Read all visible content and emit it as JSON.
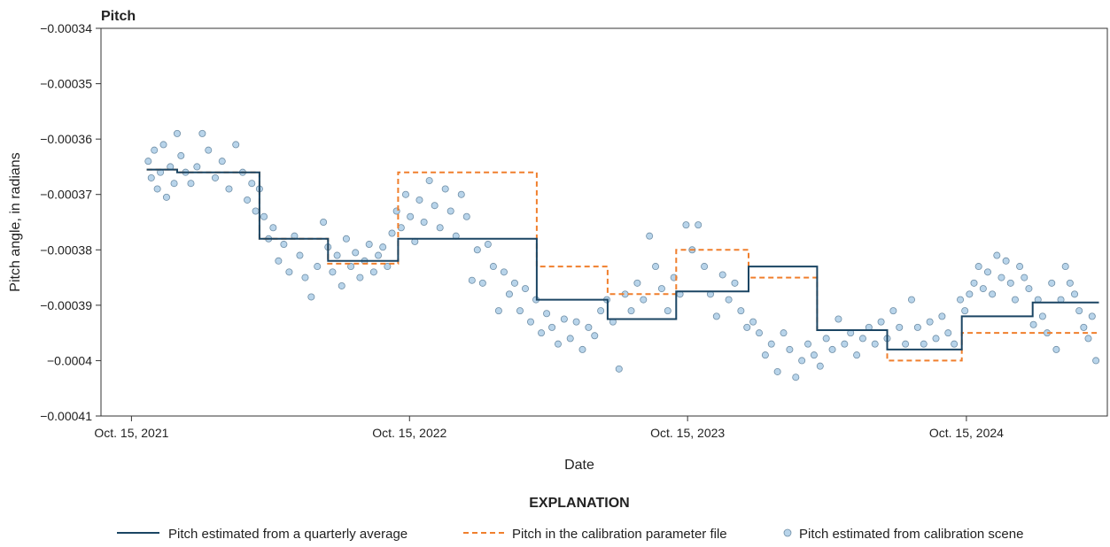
{
  "chart_data": {
    "type": "line",
    "title": "Pitch",
    "xlabel": "Date",
    "ylabel": "Pitch angle, in radians",
    "ylim": [
      -0.00041,
      -0.00034
    ],
    "yticks": [
      -0.00034,
      -0.00035,
      -0.00036,
      -0.00037,
      -0.00038,
      -0.00039,
      -0.0004,
      -0.00041
    ],
    "ytick_labels": [
      "−0.00034",
      "−0.00035",
      "−0.00036",
      "−0.00037",
      "−0.00038",
      "−0.00039",
      "−0.0004",
      "−0.00041"
    ],
    "xlim_days": [
      -40,
      1281
    ],
    "xticks": [
      {
        "day": 0,
        "label": "Oct. 15, 2021"
      },
      {
        "day": 365,
        "label": "Oct. 15, 2022"
      },
      {
        "day": 730,
        "label": "Oct. 15, 2023"
      },
      {
        "day": 1096,
        "label": "Oct. 15, 2024"
      }
    ],
    "x_unit": "days since Oct. 15, 2021",
    "grid": false,
    "explanation_title": "EXPLANATION",
    "legend_position": "bottom",
    "series": [
      {
        "name": "Pitch estimated from a quarterly average",
        "style": "solid-step",
        "color": "#1b4563",
        "x": [
          20,
          60,
          60,
          168,
          168,
          258,
          258,
          350,
          350,
          442,
          442,
          532,
          532,
          625,
          625,
          715,
          715,
          810,
          810,
          900,
          900,
          992,
          992,
          1090,
          1090,
          1183,
          1183,
          1270
        ],
        "y": [
          -0.0003655,
          -0.0003655,
          -0.000366,
          -0.000366,
          -0.000378,
          -0.000378,
          -0.000382,
          -0.000382,
          -0.000378,
          -0.000378,
          -0.000378,
          -0.000378,
          -0.000389,
          -0.000389,
          -0.0003925,
          -0.0003925,
          -0.0003875,
          -0.0003875,
          -0.000383,
          -0.000383,
          -0.0003945,
          -0.0003945,
          -0.000398,
          -0.000398,
          -0.000392,
          -0.000392,
          -0.0003895,
          -0.0003895
        ]
      },
      {
        "name": "Pitch in the calibration parameter file",
        "style": "dashed-step",
        "color": "#f07f2d",
        "x": [
          20,
          60,
          60,
          168,
          168,
          258,
          258,
          350,
          350,
          532,
          532,
          625,
          625,
          715,
          715,
          810,
          810,
          900,
          900,
          992,
          992,
          1090,
          1090,
          1270
        ],
        "y": [
          -0.0003655,
          -0.0003655,
          -0.000366,
          -0.000366,
          -0.000378,
          -0.000378,
          -0.0003825,
          -0.0003825,
          -0.000366,
          -0.000366,
          -0.000383,
          -0.000383,
          -0.000388,
          -0.000388,
          -0.00038,
          -0.00038,
          -0.000385,
          -0.000385,
          -0.0003945,
          -0.0003945,
          -0.0004,
          -0.0004,
          -0.000395,
          -0.000395
        ]
      },
      {
        "name": "Pitch estimated from calibration scene",
        "style": "scatter",
        "color": "#b8d4ea",
        "x": [
          22,
          26,
          30,
          34,
          38,
          42,
          46,
          51,
          56,
          60,
          65,
          71,
          78,
          86,
          93,
          101,
          110,
          119,
          128,
          137,
          146,
          152,
          158,
          163,
          168,
          174,
          180,
          186,
          193,
          200,
          207,
          214,
          221,
          228,
          236,
          244,
          252,
          258,
          264,
          270,
          276,
          282,
          288,
          294,
          300,
          306,
          312,
          318,
          324,
          330,
          336,
          342,
          348,
          354,
          360,
          366,
          372,
          378,
          384,
          391,
          398,
          405,
          412,
          419,
          426,
          433,
          440,
          447,
          454,
          461,
          468,
          475,
          482,
          489,
          496,
          503,
          510,
          517,
          524,
          531,
          538,
          545,
          552,
          560,
          568,
          576,
          584,
          592,
          600,
          608,
          616,
          624,
          632,
          640,
          648,
          656,
          664,
          672,
          680,
          688,
          696,
          704,
          712,
          720,
          728,
          736,
          744,
          752,
          760,
          768,
          776,
          784,
          792,
          800,
          808,
          816,
          824,
          832,
          840,
          848,
          856,
          864,
          872,
          880,
          888,
          896,
          904,
          912,
          920,
          928,
          936,
          944,
          952,
          960,
          968,
          976,
          984,
          992,
          1000,
          1008,
          1016,
          1024,
          1032,
          1040,
          1048,
          1056,
          1064,
          1072,
          1080,
          1088,
          1094,
          1100,
          1106,
          1112,
          1118,
          1124,
          1130,
          1136,
          1142,
          1148,
          1154,
          1160,
          1166,
          1172,
          1178,
          1184,
          1190,
          1196,
          1202,
          1208,
          1214,
          1220,
          1226,
          1232,
          1238,
          1244,
          1250,
          1256,
          1261,
          1266
        ],
        "y": [
          -0.000364,
          -0.000367,
          -0.000362,
          -0.000369,
          -0.000366,
          -0.000361,
          -0.0003705,
          -0.000365,
          -0.000368,
          -0.000359,
          -0.000363,
          -0.000366,
          -0.000368,
          -0.000365,
          -0.000359,
          -0.000362,
          -0.000367,
          -0.000364,
          -0.000369,
          -0.000361,
          -0.000366,
          -0.000371,
          -0.000368,
          -0.000373,
          -0.000369,
          -0.000374,
          -0.000378,
          -0.000376,
          -0.000382,
          -0.000379,
          -0.000384,
          -0.0003775,
          -0.000381,
          -0.000385,
          -0.0003885,
          -0.000383,
          -0.000375,
          -0.0003795,
          -0.000384,
          -0.000381,
          -0.0003865,
          -0.000378,
          -0.000383,
          -0.0003805,
          -0.000385,
          -0.000382,
          -0.000379,
          -0.000384,
          -0.000381,
          -0.0003795,
          -0.000383,
          -0.000377,
          -0.000373,
          -0.000376,
          -0.00037,
          -0.000374,
          -0.0003785,
          -0.000371,
          -0.000375,
          -0.0003675,
          -0.000372,
          -0.000376,
          -0.000369,
          -0.000373,
          -0.0003775,
          -0.00037,
          -0.000374,
          -0.0003855,
          -0.00038,
          -0.000386,
          -0.000379,
          -0.000383,
          -0.000391,
          -0.000384,
          -0.000388,
          -0.000386,
          -0.000391,
          -0.000387,
          -0.000393,
          -0.000389,
          -0.000395,
          -0.0003915,
          -0.000394,
          -0.000397,
          -0.0003925,
          -0.000396,
          -0.000393,
          -0.000398,
          -0.000394,
          -0.0003955,
          -0.000391,
          -0.000389,
          -0.000393,
          -0.0004015,
          -0.000388,
          -0.000391,
          -0.000386,
          -0.000389,
          -0.0003775,
          -0.000383,
          -0.000387,
          -0.000391,
          -0.000385,
          -0.000388,
          -0.0003755,
          -0.00038,
          -0.0003755,
          -0.000383,
          -0.000388,
          -0.000392,
          -0.0003845,
          -0.000389,
          -0.000386,
          -0.000391,
          -0.000394,
          -0.000393,
          -0.000395,
          -0.000399,
          -0.000397,
          -0.000402,
          -0.000395,
          -0.000398,
          -0.000403,
          -0.0004,
          -0.000397,
          -0.000399,
          -0.000401,
          -0.000396,
          -0.000398,
          -0.0003925,
          -0.000397,
          -0.000395,
          -0.000399,
          -0.000396,
          -0.000394,
          -0.000397,
          -0.000393,
          -0.000396,
          -0.000391,
          -0.000394,
          -0.000397,
          -0.000389,
          -0.000394,
          -0.000397,
          -0.000393,
          -0.000396,
          -0.000392,
          -0.000395,
          -0.000397,
          -0.000389,
          -0.000391,
          -0.000388,
          -0.000386,
          -0.000383,
          -0.000387,
          -0.000384,
          -0.000388,
          -0.000381,
          -0.000385,
          -0.000382,
          -0.000386,
          -0.000389,
          -0.000383,
          -0.000385,
          -0.000387,
          -0.0003935,
          -0.000389,
          -0.000392,
          -0.000395,
          -0.000386,
          -0.000398,
          -0.000389,
          -0.000383,
          -0.000386,
          -0.000388,
          -0.000391,
          -0.000394,
          -0.000396,
          -0.000392,
          -0.0004
        ]
      }
    ]
  }
}
